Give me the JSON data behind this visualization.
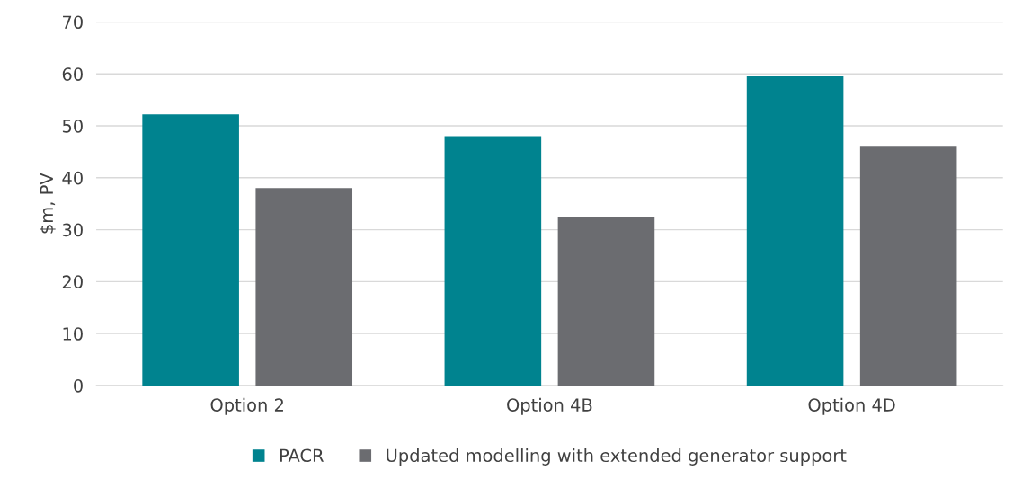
{
  "chart_data": {
    "type": "bar",
    "ylabel": "$m, PV",
    "categories": [
      "Option 2",
      "Option 4B",
      "Option 4D"
    ],
    "series": [
      {
        "name": "PACR",
        "color": "#00838f",
        "values": [
          52.2,
          48,
          59.5
        ]
      },
      {
        "name": "Updated modelling with extended generator support",
        "color": "#6b6c70",
        "values": [
          38,
          32.5,
          46
        ]
      }
    ],
    "ylim": [
      0,
      70
    ],
    "yticks": [
      0,
      10,
      20,
      30,
      40,
      50,
      60,
      70
    ],
    "grid": "y",
    "legend": "bottom"
  }
}
